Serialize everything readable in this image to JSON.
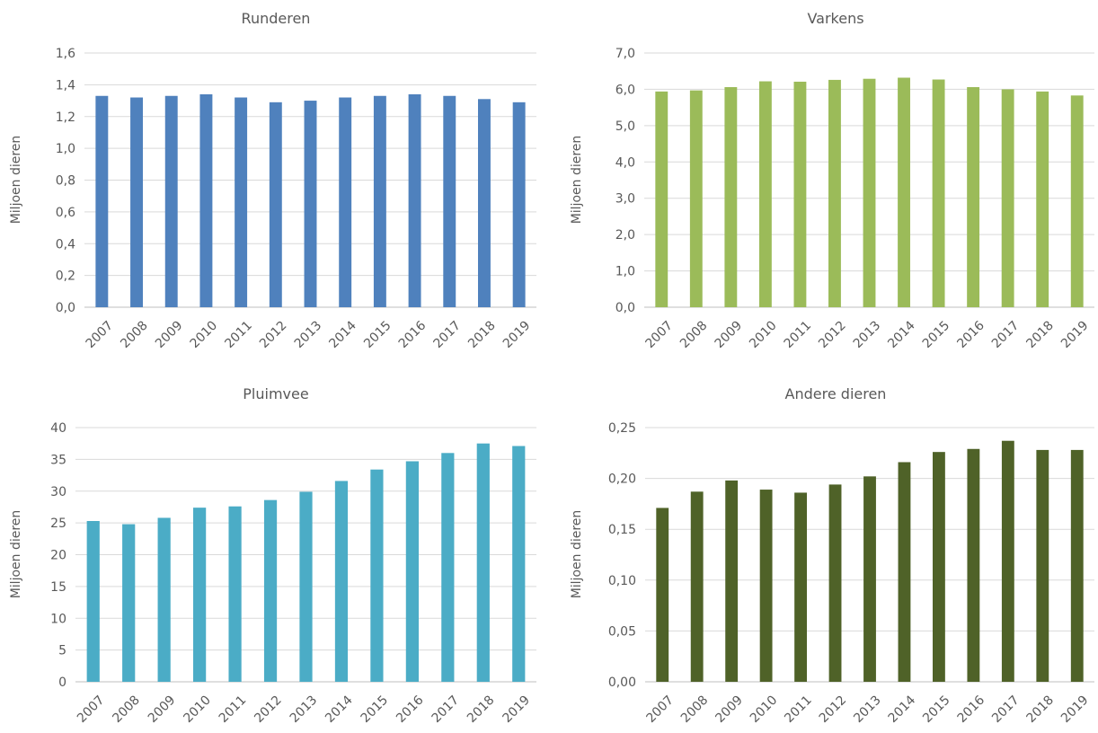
{
  "chart_data": [
    {
      "type": "bar",
      "title": "Runderen",
      "ylabel": "Miljoen dieren",
      "xlabel": "",
      "categories": [
        "2007",
        "2008",
        "2009",
        "2010",
        "2011",
        "2012",
        "2013",
        "2014",
        "2015",
        "2016",
        "2017",
        "2018",
        "2019"
      ],
      "values": [
        1.33,
        1.32,
        1.33,
        1.34,
        1.32,
        1.29,
        1.3,
        1.32,
        1.33,
        1.34,
        1.33,
        1.31,
        1.29
      ],
      "yticks": [
        "0,0",
        "0,2",
        "0,4",
        "0,6",
        "0,8",
        "1,0",
        "1,2",
        "1,4",
        "1,6"
      ],
      "ylim": [
        0,
        1.6
      ],
      "color": "#4f81bd",
      "grid": true
    },
    {
      "type": "bar",
      "title": "Varkens",
      "ylabel": "Miljoen dieren",
      "xlabel": "",
      "categories": [
        "2007",
        "2008",
        "2009",
        "2010",
        "2011",
        "2012",
        "2013",
        "2014",
        "2015",
        "2016",
        "2017",
        "2018",
        "2019"
      ],
      "values": [
        5.94,
        5.97,
        6.06,
        6.22,
        6.21,
        6.26,
        6.29,
        6.32,
        6.27,
        6.06,
        6.0,
        5.94,
        5.83
      ],
      "yticks": [
        "0,0",
        "1,0",
        "2,0",
        "3,0",
        "4,0",
        "5,0",
        "6,0",
        "7,0"
      ],
      "ylim": [
        0,
        7.0
      ],
      "color": "#9bbb59",
      "grid": true
    },
    {
      "type": "bar",
      "title": "Pluimvee",
      "ylabel": "Miljoen dieren",
      "xlabel": "",
      "categories": [
        "2007",
        "2008",
        "2009",
        "2010",
        "2011",
        "2012",
        "2013",
        "2014",
        "2015",
        "2016",
        "2017",
        "2018",
        "2019"
      ],
      "values": [
        25.3,
        24.8,
        25.8,
        27.4,
        27.6,
        28.6,
        29.9,
        31.6,
        33.4,
        34.7,
        36.0,
        37.5,
        37.1
      ],
      "yticks": [
        "0",
        "5",
        "10",
        "15",
        "20",
        "25",
        "30",
        "35",
        "40"
      ],
      "ylim": [
        0,
        40
      ],
      "color": "#4bacc6",
      "grid": true
    },
    {
      "type": "bar",
      "title": "Andere dieren",
      "ylabel": "Miljoen dieren",
      "xlabel": "",
      "categories": [
        "2007",
        "2008",
        "2009",
        "2010",
        "2011",
        "2012",
        "2013",
        "2014",
        "2015",
        "2016",
        "2017",
        "2018",
        "2019"
      ],
      "values": [
        0.171,
        0.187,
        0.198,
        0.189,
        0.186,
        0.194,
        0.202,
        0.216,
        0.226,
        0.229,
        0.237,
        0.228,
        0.228
      ],
      "yticks": [
        "0,00",
        "0,05",
        "0,10",
        "0,15",
        "0,20",
        "0,25"
      ],
      "ylim": [
        0,
        0.25
      ],
      "color": "#4f6228",
      "grid": true
    }
  ]
}
